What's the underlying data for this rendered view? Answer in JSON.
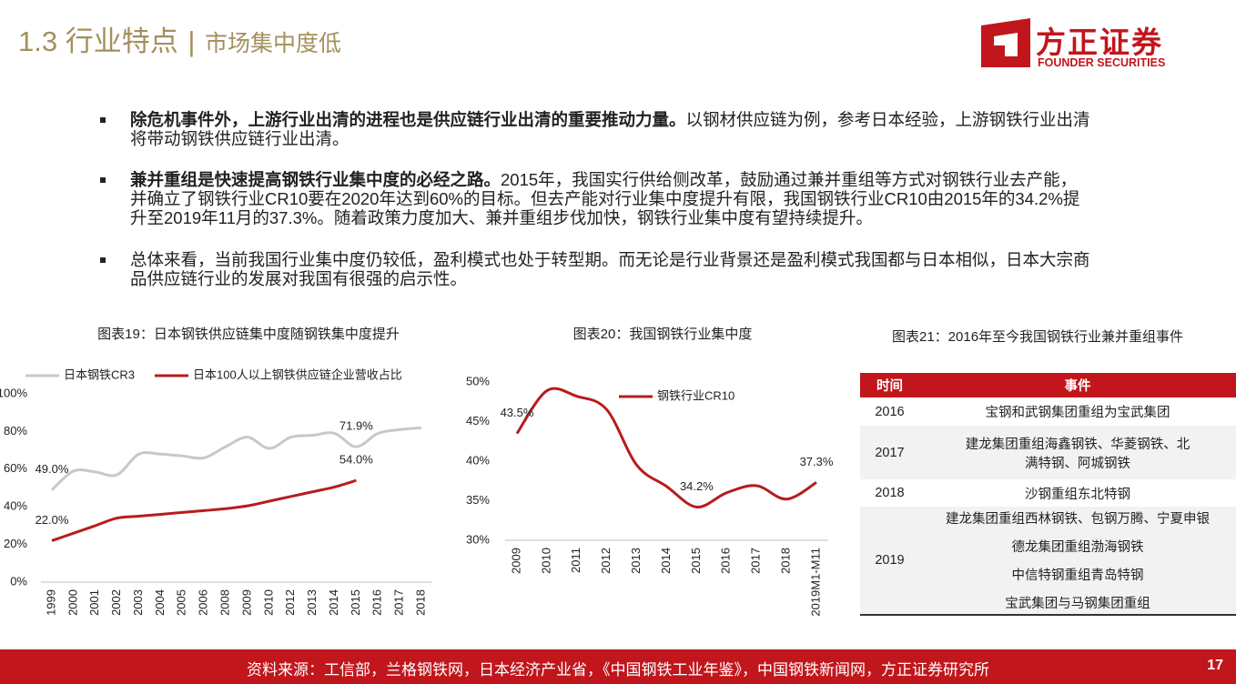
{
  "header": {
    "section": "1.3 行业特点",
    "divider": "|",
    "subtitle": "市场集中度低",
    "logo_cn": "方正证券",
    "logo_en": "FOUNDER SECURITIES"
  },
  "bullets": [
    {
      "bold": "除危机事件外，上游行业出清的进程也是供应链行业出清的重要推动力量。",
      "text": "以钢材供应链为例，参考日本经验，上游钢铁行业出清将带动钢铁供应链行业出清。"
    },
    {
      "bold": "兼并重组是快速提高钢铁行业集中度的必经之路。",
      "text": "2015年，我国实行供给侧改革，鼓励通过兼并重组等方式对钢铁行业去产能，并确立了钢铁行业CR10要在2020年达到60%的目标。但去产能对行业集中度提升有限，我国钢铁行业CR10由2015年的34.2%提升至2019年11月的37.3%。随着政策力度加大、兼并重组步伐加快，钢铁行业集中度有望持续提升。"
    },
    {
      "bold": "",
      "text": "总体来看，当前我国行业集中度仍较低，盈利模式也处于转型期。而无论是行业背景还是盈利模式我国都与日本相似，日本大宗商品供应链行业的发展对我国有很强的启示性。"
    }
  ],
  "chart_data": [
    {
      "type": "line",
      "title": "图表19：日本钢铁供应链集中度随钢铁集中度提升",
      "categories": [
        "1999",
        "2000",
        "2001",
        "2002",
        "2003",
        "2004",
        "2005",
        "2006",
        "2008",
        "2009",
        "2010",
        "2012",
        "2013",
        "2014",
        "2015",
        "2016",
        "2017",
        "2018"
      ],
      "series": [
        {
          "name": "日本钢铁CR3",
          "color": "#c8c8c8",
          "values": [
            49.0,
            59,
            58.5,
            57,
            68,
            68,
            67,
            66,
            72,
            77,
            71,
            77,
            78,
            79,
            71.9,
            79,
            81,
            82
          ],
          "value_labels": [
            "49.0%",
            null,
            null,
            null,
            null,
            null,
            null,
            null,
            null,
            null,
            null,
            null,
            null,
            null,
            "71.9%",
            null,
            null,
            null
          ]
        },
        {
          "name": "日本100人以上钢铁供应链企业营收占比",
          "color": "#b71c1c",
          "values": [
            22.0,
            26,
            30,
            34,
            35,
            36,
            37,
            38,
            39,
            40.5,
            43,
            45.5,
            48,
            50.5,
            54.0,
            null,
            null,
            null
          ],
          "value_labels": [
            "22.0%",
            null,
            null,
            null,
            null,
            null,
            null,
            null,
            null,
            null,
            null,
            null,
            null,
            null,
            "54.0%",
            null,
            null,
            null
          ]
        }
      ],
      "ylim": [
        0,
        100
      ],
      "yticks": [
        {
          "value": 0,
          "label": "0%"
        },
        {
          "value": 20,
          "label": "20%"
        },
        {
          "value": 40,
          "label": "40%"
        },
        {
          "value": 60,
          "label": "60%"
        },
        {
          "value": 80,
          "label": "80%"
        },
        {
          "value": 100,
          "label": "100%"
        }
      ],
      "legend": "top"
    },
    {
      "type": "line",
      "title": "图表20：我国钢铁行业集中度",
      "categories": [
        "2009",
        "2010",
        "2011",
        "2012",
        "2013",
        "2014",
        "2015",
        "2016",
        "2017",
        "2018",
        "2019M1-M11"
      ],
      "series": [
        {
          "name": "钢铁行业CR10",
          "color": "#b71c1c",
          "values": [
            43.5,
            48.9,
            48.2,
            46.5,
            39.5,
            36.8,
            34.2,
            36,
            36.9,
            35.2,
            37.3
          ],
          "value_labels": [
            "43.5%",
            null,
            null,
            null,
            null,
            null,
            "34.2%",
            null,
            null,
            null,
            "37.3%"
          ]
        }
      ],
      "ylim": [
        30,
        50
      ],
      "yticks": [
        {
          "value": 30,
          "label": "30%"
        },
        {
          "value": 35,
          "label": "35%"
        },
        {
          "value": 40,
          "label": "40%"
        },
        {
          "value": 45,
          "label": "45%"
        },
        {
          "value": 50,
          "label": "50%"
        }
      ],
      "legend": "top-right"
    }
  ],
  "table": {
    "title": "图表21：2016年至今我国钢铁行业兼并重组事件",
    "header": [
      "时间",
      "事件"
    ],
    "rows": [
      {
        "year": "2016",
        "events": [
          "宝钢和武钢集团重组为宝武集团"
        ]
      },
      {
        "year": "2017",
        "events": [
          "建龙集团重组海鑫钢铁、华菱钢铁、北满特钢、阿城钢铁"
        ]
      },
      {
        "year": "2018",
        "events": [
          "沙钢重组东北特钢"
        ]
      },
      {
        "year": "2019",
        "events": [
          "建龙集团重组西林钢铁、包钢万腾、宁夏申银",
          "德龙集团重组渤海钢铁",
          "中信特钢重组青岛特钢",
          "宝武集团与马钢集团重组"
        ]
      }
    ]
  },
  "footer": {
    "source": "资料来源：工信部，兰格钢铁网，日本经济产业省，《中国钢铁工业年鉴》，中国钢铁新闻网，方正证券研究所",
    "page": "17"
  }
}
